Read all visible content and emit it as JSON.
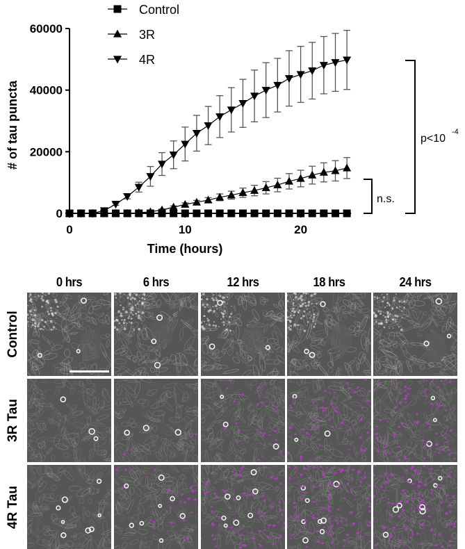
{
  "chart_data": {
    "type": "line",
    "title": "",
    "xlabel": "Time (hours)",
    "ylabel": "# of tau puncta",
    "xlim": [
      0,
      24
    ],
    "ylim": [
      0,
      60000
    ],
    "x_ticks": [
      0,
      10,
      20
    ],
    "y_ticks": [
      0,
      20000,
      40000,
      60000
    ],
    "grid": false,
    "legend_position": "top-left-inside",
    "x": [
      0,
      1,
      2,
      3,
      4,
      5,
      6,
      7,
      8,
      9,
      10,
      11,
      12,
      13,
      14,
      15,
      16,
      17,
      18,
      19,
      20,
      21,
      22,
      23,
      24
    ],
    "series": [
      {
        "name": "Control",
        "marker": "square",
        "values": [
          0,
          0,
          0,
          0,
          0,
          0,
          0,
          0,
          0,
          0,
          0,
          0,
          0,
          0,
          0,
          0,
          0,
          0,
          0,
          0,
          0,
          0,
          0,
          0,
          0
        ],
        "error": [
          0,
          0,
          0,
          0,
          0,
          0,
          0,
          0,
          0,
          0,
          0,
          0,
          0,
          0,
          0,
          0,
          0,
          0,
          0,
          0,
          0,
          0,
          0,
          0,
          0
        ]
      },
      {
        "name": "3R",
        "marker": "triangle-up",
        "values": [
          0,
          0,
          0,
          0,
          0,
          0,
          200,
          500,
          1100,
          2000,
          2900,
          3600,
          4300,
          5200,
          5900,
          6700,
          7400,
          8300,
          9200,
          10400,
          11300,
          12400,
          13300,
          13800,
          14700
        ],
        "error": [
          0,
          0,
          0,
          0,
          0,
          0,
          100,
          200,
          300,
          400,
          500,
          600,
          800,
          1100,
          1300,
          1500,
          1700,
          2000,
          2200,
          2500,
          2700,
          2900,
          3100,
          3300,
          3400
        ]
      },
      {
        "name": "4R",
        "marker": "triangle-down",
        "values": [
          0,
          0,
          0,
          900,
          3000,
          5500,
          8500,
          12000,
          16000,
          19000,
          22500,
          26000,
          28500,
          31400,
          33600,
          35700,
          38100,
          40000,
          41600,
          43800,
          45100,
          46300,
          48100,
          49000,
          49800
        ],
        "error": [
          0,
          0,
          0,
          300,
          400,
          800,
          1600,
          3200,
          3700,
          4500,
          5500,
          5800,
          6200,
          6800,
          7200,
          7800,
          8400,
          8900,
          8700,
          9000,
          9100,
          9200,
          9300,
          9400,
          9600
        ]
      }
    ],
    "annotations": [
      {
        "type": "bracket",
        "between": [
          "Control",
          "3R"
        ],
        "label": "n.s."
      },
      {
        "type": "bracket",
        "between": [
          "Control",
          "4R"
        ],
        "label": "p<10",
        "label_superscript": "-4"
      }
    ]
  },
  "legend": [
    {
      "label": "Control",
      "marker": "square"
    },
    {
      "label": "3R",
      "marker": "triangle-up"
    },
    {
      "label": "4R",
      "marker": "triangle-down"
    }
  ],
  "axes": {
    "x_title": "Time (hours)",
    "y_title": "# of tau puncta",
    "x_tick_labels": [
      "0",
      "10",
      "20"
    ],
    "y_tick_labels": [
      "0",
      "20000",
      "40000",
      "60000"
    ]
  },
  "stats": {
    "ns_label": "n.s.",
    "p_label": "p<10",
    "p_exponent": "-4"
  },
  "micrographs": {
    "columns": [
      "0 hrs",
      "6 hrs",
      "12 hrs",
      "18 hrs",
      "24 hrs"
    ],
    "rows": [
      "Control",
      "3R Tau",
      "4R Tau"
    ],
    "puncta_color": "#b040c0",
    "puncta_density": [
      [
        0,
        0,
        0,
        0,
        0
      ],
      [
        0,
        2,
        30,
        55,
        75
      ],
      [
        0,
        25,
        70,
        95,
        110
      ]
    ],
    "scale_bar_panel": [
      0,
      0
    ]
  },
  "colors": {
    "line": "#000000",
    "error_bar": "#555555",
    "panel_bg": "#565656"
  }
}
